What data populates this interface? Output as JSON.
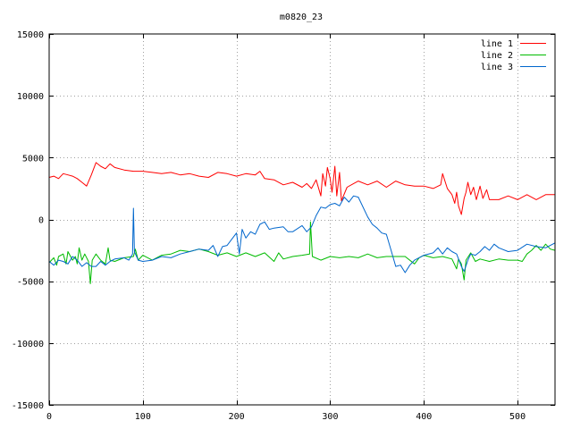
{
  "chart_data": {
    "type": "line",
    "title": "m0820_23",
    "xlabel": "",
    "ylabel": "",
    "xlim": [
      0,
      540
    ],
    "ylim": [
      -15000,
      15000
    ],
    "xticks": [
      0,
      100,
      200,
      300,
      400,
      500
    ],
    "yticks": [
      -15000,
      -10000,
      -5000,
      0,
      5000,
      10000,
      15000
    ],
    "xtick_labels": [
      "0",
      "100",
      "200",
      "300",
      "400",
      "500"
    ],
    "ytick_labels": [
      "-15000",
      "-10000",
      "-5000",
      "0",
      "5000",
      "10000",
      "15000"
    ],
    "grid": true,
    "legend_position": "top-right",
    "series": [
      {
        "name": "line 1",
        "color": "#ff0000",
        "points": [
          [
            0,
            3400
          ],
          [
            5,
            3500
          ],
          [
            10,
            3300
          ],
          [
            15,
            3700
          ],
          [
            20,
            3600
          ],
          [
            25,
            3500
          ],
          [
            30,
            3300
          ],
          [
            35,
            3000
          ],
          [
            40,
            2700
          ],
          [
            45,
            3600
          ],
          [
            50,
            4600
          ],
          [
            55,
            4300
          ],
          [
            60,
            4100
          ],
          [
            65,
            4500
          ],
          [
            70,
            4200
          ],
          [
            80,
            4000
          ],
          [
            90,
            3900
          ],
          [
            100,
            3900
          ],
          [
            110,
            3800
          ],
          [
            120,
            3700
          ],
          [
            130,
            3800
          ],
          [
            140,
            3600
          ],
          [
            150,
            3700
          ],
          [
            160,
            3500
          ],
          [
            170,
            3400
          ],
          [
            180,
            3800
          ],
          [
            190,
            3700
          ],
          [
            200,
            3500
          ],
          [
            210,
            3700
          ],
          [
            220,
            3600
          ],
          [
            225,
            3900
          ],
          [
            230,
            3300
          ],
          [
            240,
            3200
          ],
          [
            250,
            2800
          ],
          [
            260,
            3000
          ],
          [
            270,
            2600
          ],
          [
            275,
            2900
          ],
          [
            280,
            2500
          ],
          [
            285,
            3200
          ],
          [
            290,
            1900
          ],
          [
            292,
            3700
          ],
          [
            295,
            2700
          ],
          [
            297,
            4200
          ],
          [
            300,
            3300
          ],
          [
            302,
            2200
          ],
          [
            305,
            4300
          ],
          [
            307,
            1900
          ],
          [
            310,
            3800
          ],
          [
            312,
            1500
          ],
          [
            318,
            2600
          ],
          [
            325,
            2900
          ],
          [
            330,
            3100
          ],
          [
            340,
            2800
          ],
          [
            350,
            3100
          ],
          [
            360,
            2600
          ],
          [
            370,
            3100
          ],
          [
            380,
            2800
          ],
          [
            390,
            2700
          ],
          [
            400,
            2700
          ],
          [
            410,
            2500
          ],
          [
            418,
            2800
          ],
          [
            420,
            3700
          ],
          [
            425,
            2500
          ],
          [
            430,
            2000
          ],
          [
            433,
            1300
          ],
          [
            435,
            2200
          ],
          [
            437,
            1100
          ],
          [
            440,
            400
          ],
          [
            443,
            1700
          ],
          [
            445,
            2200
          ],
          [
            447,
            3000
          ],
          [
            450,
            2000
          ],
          [
            453,
            2600
          ],
          [
            456,
            1600
          ],
          [
            460,
            2700
          ],
          [
            463,
            1700
          ],
          [
            467,
            2400
          ],
          [
            470,
            1600
          ],
          [
            480,
            1600
          ],
          [
            490,
            1900
          ],
          [
            500,
            1600
          ],
          [
            510,
            2000
          ],
          [
            520,
            1600
          ],
          [
            530,
            2000
          ],
          [
            540,
            2000
          ]
        ]
      },
      {
        "name": "line 2",
        "color": "#00bb00",
        "points": [
          [
            0,
            -3500
          ],
          [
            5,
            -3100
          ],
          [
            8,
            -3700
          ],
          [
            10,
            -3000
          ],
          [
            15,
            -2800
          ],
          [
            18,
            -3600
          ],
          [
            20,
            -2600
          ],
          [
            25,
            -3300
          ],
          [
            28,
            -3000
          ],
          [
            30,
            -3600
          ],
          [
            32,
            -2300
          ],
          [
            35,
            -3300
          ],
          [
            38,
            -2800
          ],
          [
            42,
            -3400
          ],
          [
            44,
            -5200
          ],
          [
            46,
            -3300
          ],
          [
            50,
            -2800
          ],
          [
            55,
            -3300
          ],
          [
            60,
            -3600
          ],
          [
            63,
            -2300
          ],
          [
            65,
            -3300
          ],
          [
            70,
            -3400
          ],
          [
            80,
            -3100
          ],
          [
            90,
            -3000
          ],
          [
            92,
            -2400
          ],
          [
            95,
            -3300
          ],
          [
            100,
            -2900
          ],
          [
            110,
            -3300
          ],
          [
            120,
            -2900
          ],
          [
            130,
            -2800
          ],
          [
            140,
            -2500
          ],
          [
            150,
            -2600
          ],
          [
            160,
            -2400
          ],
          [
            170,
            -2600
          ],
          [
            180,
            -2900
          ],
          [
            190,
            -2700
          ],
          [
            200,
            -3000
          ],
          [
            210,
            -2700
          ],
          [
            220,
            -3000
          ],
          [
            230,
            -2700
          ],
          [
            240,
            -3400
          ],
          [
            245,
            -2700
          ],
          [
            250,
            -3200
          ],
          [
            260,
            -3000
          ],
          [
            270,
            -2900
          ],
          [
            278,
            -2800
          ],
          [
            279,
            -200
          ],
          [
            281,
            -3000
          ],
          [
            290,
            -3300
          ],
          [
            300,
            -3000
          ],
          [
            310,
            -3100
          ],
          [
            320,
            -3000
          ],
          [
            330,
            -3100
          ],
          [
            340,
            -2800
          ],
          [
            350,
            -3100
          ],
          [
            360,
            -3000
          ],
          [
            370,
            -3000
          ],
          [
            380,
            -3000
          ],
          [
            390,
            -3600
          ],
          [
            395,
            -3100
          ],
          [
            400,
            -2900
          ],
          [
            410,
            -3100
          ],
          [
            420,
            -3000
          ],
          [
            430,
            -3200
          ],
          [
            435,
            -4000
          ],
          [
            437,
            -3200
          ],
          [
            440,
            -3600
          ],
          [
            443,
            -4900
          ],
          [
            445,
            -3300
          ],
          [
            450,
            -2700
          ],
          [
            455,
            -3400
          ],
          [
            460,
            -3200
          ],
          [
            470,
            -3400
          ],
          [
            480,
            -3200
          ],
          [
            490,
            -3300
          ],
          [
            500,
            -3300
          ],
          [
            505,
            -3400
          ],
          [
            510,
            -2800
          ],
          [
            515,
            -2500
          ],
          [
            520,
            -2100
          ],
          [
            525,
            -2500
          ],
          [
            530,
            -2000
          ],
          [
            535,
            -2400
          ],
          [
            540,
            -2500
          ]
        ]
      },
      {
        "name": "line 3",
        "color": "#0066cc",
        "points": [
          [
            0,
            -3400
          ],
          [
            5,
            -3700
          ],
          [
            10,
            -3300
          ],
          [
            15,
            -3400
          ],
          [
            20,
            -3600
          ],
          [
            25,
            -3000
          ],
          [
            30,
            -3300
          ],
          [
            35,
            -3800
          ],
          [
            40,
            -3500
          ],
          [
            45,
            -3800
          ],
          [
            50,
            -3800
          ],
          [
            55,
            -3400
          ],
          [
            60,
            -3700
          ],
          [
            65,
            -3400
          ],
          [
            70,
            -3200
          ],
          [
            80,
            -3100
          ],
          [
            85,
            -3300
          ],
          [
            89,
            -2800
          ],
          [
            90,
            900
          ],
          [
            91,
            -2600
          ],
          [
            95,
            -3300
          ],
          [
            100,
            -3400
          ],
          [
            110,
            -3300
          ],
          [
            120,
            -3000
          ],
          [
            130,
            -3100
          ],
          [
            140,
            -2800
          ],
          [
            150,
            -2600
          ],
          [
            160,
            -2400
          ],
          [
            170,
            -2500
          ],
          [
            175,
            -2100
          ],
          [
            180,
            -3000
          ],
          [
            185,
            -2200
          ],
          [
            190,
            -2100
          ],
          [
            195,
            -1600
          ],
          [
            200,
            -1100
          ],
          [
            203,
            -2800
          ],
          [
            206,
            -800
          ],
          [
            210,
            -1500
          ],
          [
            215,
            -1000
          ],
          [
            220,
            -1200
          ],
          [
            225,
            -400
          ],
          [
            230,
            -200
          ],
          [
            235,
            -800
          ],
          [
            240,
            -700
          ],
          [
            250,
            -600
          ],
          [
            255,
            -1000
          ],
          [
            260,
            -1000
          ],
          [
            270,
            -500
          ],
          [
            275,
            -1000
          ],
          [
            280,
            -600
          ],
          [
            285,
            300
          ],
          [
            290,
            1000
          ],
          [
            295,
            900
          ],
          [
            300,
            1200
          ],
          [
            305,
            1300
          ],
          [
            310,
            1100
          ],
          [
            315,
            1800
          ],
          [
            320,
            1400
          ],
          [
            325,
            1900
          ],
          [
            330,
            1800
          ],
          [
            340,
            200
          ],
          [
            345,
            -400
          ],
          [
            350,
            -700
          ],
          [
            355,
            -1100
          ],
          [
            360,
            -1200
          ],
          [
            365,
            -2500
          ],
          [
            370,
            -3800
          ],
          [
            375,
            -3700
          ],
          [
            380,
            -4300
          ],
          [
            385,
            -3700
          ],
          [
            390,
            -3300
          ],
          [
            400,
            -2900
          ],
          [
            410,
            -2700
          ],
          [
            415,
            -2300
          ],
          [
            420,
            -2800
          ],
          [
            425,
            -2300
          ],
          [
            430,
            -2600
          ],
          [
            435,
            -2800
          ],
          [
            440,
            -3800
          ],
          [
            443,
            -4200
          ],
          [
            447,
            -3300
          ],
          [
            450,
            -2800
          ],
          [
            455,
            -2900
          ],
          [
            460,
            -2600
          ],
          [
            465,
            -2200
          ],
          [
            470,
            -2500
          ],
          [
            475,
            -2000
          ],
          [
            480,
            -2300
          ],
          [
            490,
            -2600
          ],
          [
            500,
            -2500
          ],
          [
            510,
            -2000
          ],
          [
            520,
            -2200
          ],
          [
            530,
            -2300
          ],
          [
            540,
            -1900
          ]
        ]
      }
    ]
  }
}
